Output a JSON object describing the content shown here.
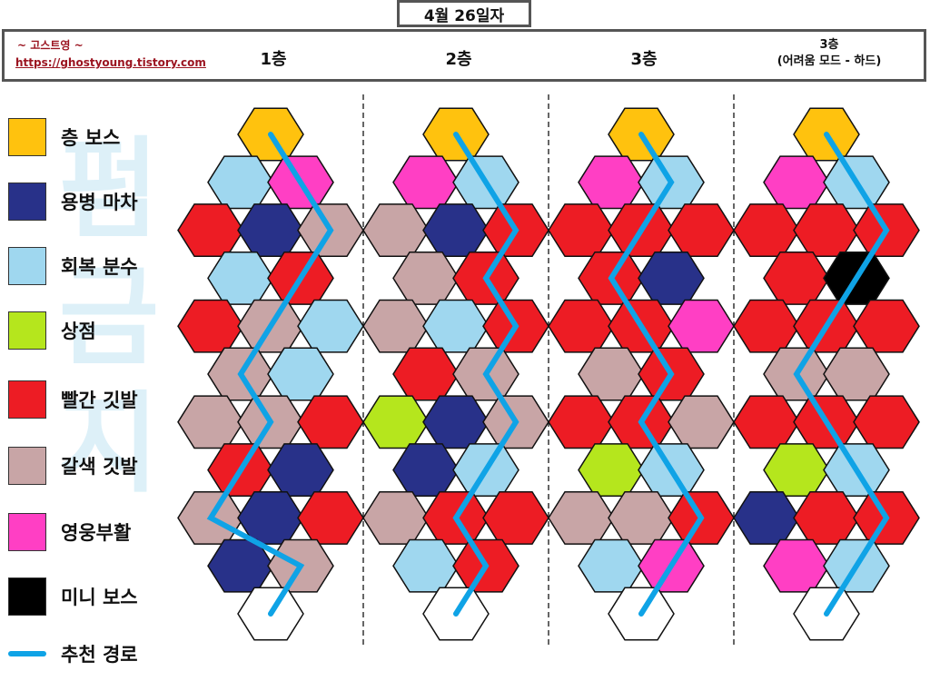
{
  "date_title": "4월 26일자",
  "site": {
    "name": "~ 고스트영 ~",
    "url": "https://ghostyoung.tistory.com"
  },
  "floors": [
    {
      "label": "1층",
      "sublabel": ""
    },
    {
      "label": "2층",
      "sublabel": ""
    },
    {
      "label": "3층",
      "sublabel": ""
    },
    {
      "label": "3층",
      "sublabel": "(어려움 모드 - 하드)"
    }
  ],
  "legend": [
    {
      "key": "boss",
      "label": "층 보스",
      "color": "#ffc20e"
    },
    {
      "key": "carriage",
      "label": "용병 마차",
      "color": "#283189"
    },
    {
      "key": "fountain",
      "label": "회복 분수",
      "color": "#9fd7ef"
    },
    {
      "key": "shop",
      "label": "상점",
      "color": "#b5e61d"
    },
    {
      "key": "red",
      "label": "빨간 깃발",
      "color": "#ed1c24"
    },
    {
      "key": "brown",
      "label": "갈색 깃발",
      "color": "#c8a5a6"
    },
    {
      "key": "revive",
      "label": "영웅부활",
      "color": "#ff3fc4"
    },
    {
      "key": "miniboss",
      "label": "미니 보스",
      "color": "#000000"
    }
  ],
  "route_legend": {
    "label": "추천 경로",
    "color": "#0fa3e6"
  },
  "watermark": "펌금지",
  "colors": {
    "B": "#ffc20e",
    "N": "#283189",
    "L": "#9fd7ef",
    "G": "#b5e61d",
    "R": "#ed1c24",
    "T": "#c8a5a6",
    "P": "#ff3fc4",
    "K": "#000000",
    "W": "#ffffff"
  },
  "maps": [
    {
      "rows": [
        "B",
        "LP",
        "RNT",
        "LR",
        "RTL",
        "TL",
        "TTR",
        "RN",
        "TNR",
        "NT",
        "W"
      ],
      "route": [
        [
          0,
          0
        ],
        [
          1,
          1
        ],
        [
          2,
          2
        ],
        [
          3,
          1
        ],
        [
          4,
          1
        ],
        [
          5,
          0
        ],
        [
          6,
          1
        ],
        [
          7,
          0
        ],
        [
          8,
          0
        ],
        [
          9,
          1
        ],
        [
          10,
          0
        ]
      ]
    },
    {
      "rows": [
        "B",
        "PL",
        "TNR",
        "TR",
        "TLR",
        "RT",
        "GNT",
        "NL",
        "TRR",
        "LR",
        "W"
      ],
      "route": [
        [
          0,
          0
        ],
        [
          1,
          1
        ],
        [
          2,
          2
        ],
        [
          3,
          1
        ],
        [
          4,
          2
        ],
        [
          5,
          1
        ],
        [
          6,
          2
        ],
        [
          7,
          1
        ],
        [
          8,
          1
        ],
        [
          9,
          1
        ],
        [
          10,
          0
        ]
      ]
    },
    {
      "rows": [
        "B",
        "PL",
        "RRR",
        "RN",
        "RRP",
        "TR",
        "RRT",
        "GL",
        "TTR",
        "LP",
        "W"
      ],
      "route": [
        [
          0,
          0
        ],
        [
          1,
          1
        ],
        [
          2,
          1
        ],
        [
          3,
          0
        ],
        [
          4,
          1
        ],
        [
          5,
          1
        ],
        [
          6,
          1
        ],
        [
          7,
          1
        ],
        [
          8,
          2
        ],
        [
          9,
          1
        ],
        [
          10,
          0
        ]
      ]
    },
    {
      "rows": [
        "B",
        "PL",
        "RRR",
        "RK",
        "RRR",
        "TT",
        "RRR",
        "GL",
        "NRR",
        "PL",
        "W"
      ],
      "route": [
        [
          0,
          0
        ],
        [
          1,
          1
        ],
        [
          2,
          2
        ],
        [
          3,
          1
        ],
        [
          4,
          1
        ],
        [
          5,
          0
        ],
        [
          6,
          1
        ],
        [
          7,
          1
        ],
        [
          8,
          2
        ],
        [
          9,
          1
        ],
        [
          10,
          0
        ]
      ]
    }
  ]
}
